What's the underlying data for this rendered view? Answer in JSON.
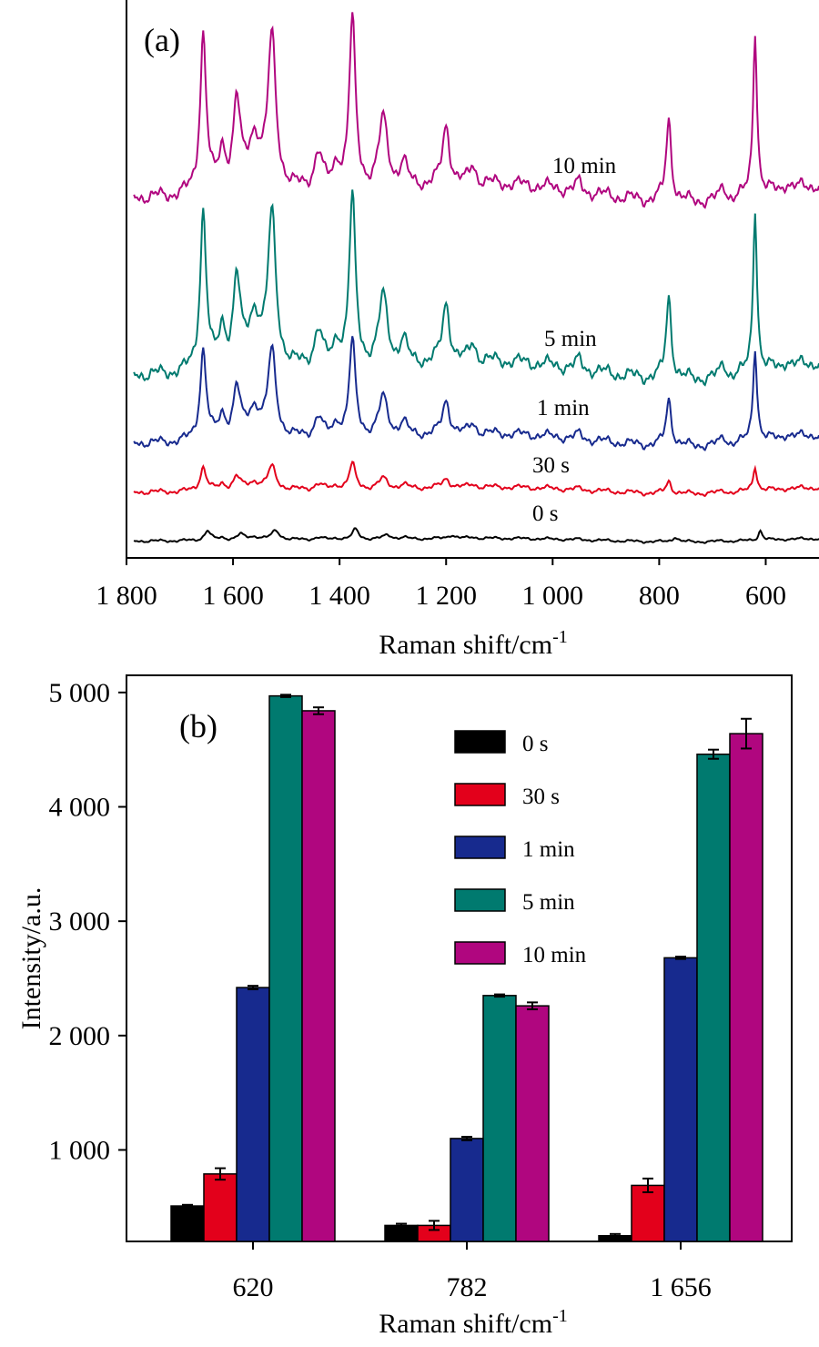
{
  "chart_data": [
    {
      "panel_label": "(a)",
      "type": "line",
      "xlabel": "Raman shift/cm",
      "xlabel_superscript": "-1",
      "ylabel": "",
      "x_reversed": true,
      "xlim": [
        1800,
        500
      ],
      "x_ticks": [
        1800,
        1600,
        1400,
        1200,
        1000,
        800,
        600
      ],
      "x_tick_labels": [
        "1 800",
        "1 600",
        "1 400",
        "1 200",
        "1 000",
        "800",
        "600"
      ],
      "grid": false,
      "peaks_cm": [
        1656,
        1593,
        1527,
        1376,
        1318,
        1200,
        782,
        620
      ],
      "series": [
        {
          "name": "0 s",
          "color": "#000000",
          "scale": 0.1,
          "peak_pos": [
            1648,
            1586,
            1520,
            1370,
            1310,
            1190,
            770,
            610
          ]
        },
        {
          "name": "30 s",
          "color": "#e3001b",
          "scale": 0.15
        },
        {
          "name": "1 min",
          "color": "#172a8e",
          "scale": 0.57
        },
        {
          "name": "5 min",
          "color": "#007a6f",
          "scale": 1.0
        },
        {
          "name": "10 min",
          "color": "#b0067f",
          "scale": 1.0
        }
      ]
    },
    {
      "panel_label": "(b)",
      "type": "bar",
      "xlabel": "Raman shift/cm",
      "xlabel_superscript": "-1",
      "ylabel": "Intensity/a.u.",
      "categories": [
        "620",
        "782",
        "1 656"
      ],
      "ylim": [
        200,
        5150
      ],
      "y_ticks": [
        1000,
        2000,
        3000,
        4000,
        5000
      ],
      "y_tick_labels": [
        "1 000",
        "2 000",
        "3 000",
        "4 000",
        "5 000"
      ],
      "legend_position": "top-right",
      "grid": false,
      "series": [
        {
          "name": "0 s",
          "color": "#000000",
          "values": [
            510,
            340,
            250
          ],
          "errors": [
            10,
            15,
            15
          ]
        },
        {
          "name": "30 s",
          "color": "#e3001b",
          "values": [
            790,
            340,
            690
          ],
          "errors": [
            50,
            40,
            60
          ]
        },
        {
          "name": "1 min",
          "color": "#172a8e",
          "values": [
            2420,
            1100,
            2680
          ],
          "errors": [
            15,
            15,
            10
          ]
        },
        {
          "name": "5 min",
          "color": "#007a6f",
          "values": [
            4970,
            2350,
            4460
          ],
          "errors": [
            10,
            10,
            40
          ]
        },
        {
          "name": "10 min",
          "color": "#b0067f",
          "values": [
            4840,
            2260,
            4640
          ],
          "errors": [
            30,
            30,
            130
          ]
        }
      ]
    }
  ]
}
